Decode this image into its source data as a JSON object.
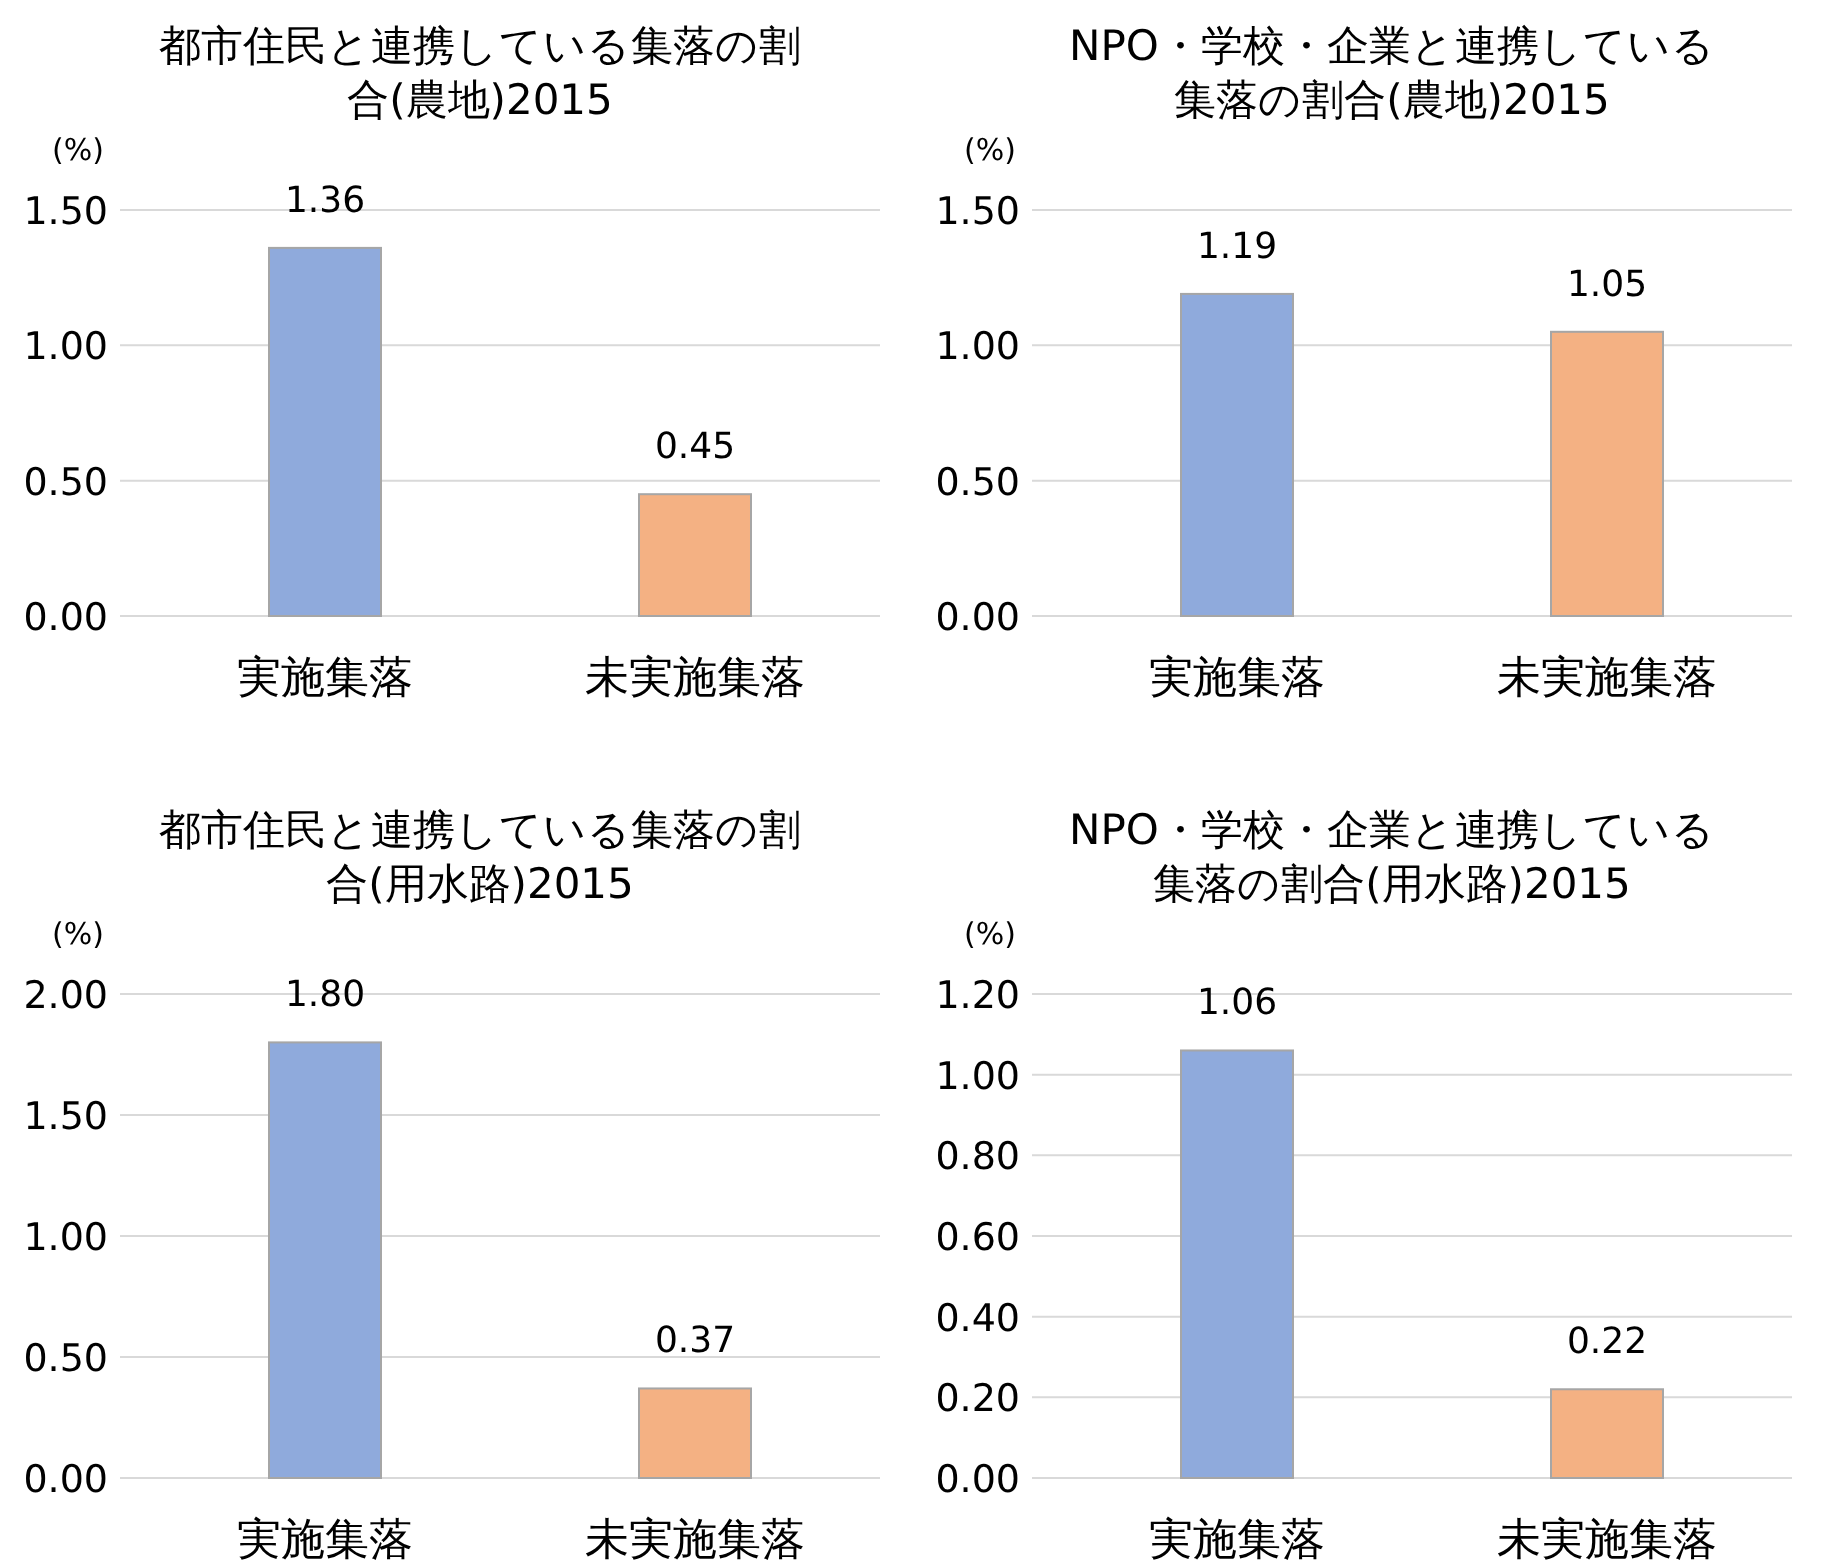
{
  "chart_data": [
    {
      "type": "bar",
      "title": "都市住民と連携している集落の割合(農地)2015",
      "ylabel": "(%)",
      "categories": [
        "実施集落",
        "未実施集落"
      ],
      "values": [
        1.36,
        0.45
      ],
      "value_labels": [
        "1.36",
        "0.45"
      ],
      "colors": [
        "#8faadc",
        "#f4b183"
      ],
      "ylim": [
        0,
        1.5
      ],
      "yticks": [
        {
          "value": 0,
          "label": "0.00"
        },
        {
          "value": 0.5,
          "label": "0.50"
        },
        {
          "value": 1,
          "label": "1.00"
        },
        {
          "value": 1.5,
          "label": "1.50"
        }
      ],
      "grid": "y"
    },
    {
      "type": "bar",
      "title": "NPO・学校・企業と連携している集落の割合(農地)2015",
      "ylabel": "(%)",
      "categories": [
        "実施集落",
        "未実施集落"
      ],
      "values": [
        1.19,
        1.05
      ],
      "value_labels": [
        "1.19",
        "1.05"
      ],
      "colors": [
        "#8faadc",
        "#f4b183"
      ],
      "ylim": [
        0,
        1.5
      ],
      "yticks": [
        {
          "value": 0,
          "label": "0.00"
        },
        {
          "value": 0.5,
          "label": "0.50"
        },
        {
          "value": 1,
          "label": "1.00"
        },
        {
          "value": 1.5,
          "label": "1.50"
        }
      ],
      "grid": "y"
    },
    {
      "type": "bar",
      "title": "都市住民と連携している集落の割合(用水路)2015",
      "ylabel": "(%)",
      "categories": [
        "実施集落",
        "未実施集落"
      ],
      "values": [
        1.8,
        0.37
      ],
      "value_labels": [
        "1.80",
        "0.37"
      ],
      "colors": [
        "#8faadc",
        "#f4b183"
      ],
      "ylim": [
        0,
        2
      ],
      "yticks": [
        {
          "value": 0,
          "label": "0.00"
        },
        {
          "value": 0.5,
          "label": "0.50"
        },
        {
          "value": 1,
          "label": "1.00"
        },
        {
          "value": 1.5,
          "label": "1.50"
        },
        {
          "value": 2,
          "label": "2.00"
        }
      ],
      "grid": "y"
    },
    {
      "type": "bar",
      "title": "NPO・学校・企業と連携している集落の割合(用水路)2015",
      "ylabel": "(%)",
      "categories": [
        "実施集落",
        "未実施集落"
      ],
      "values": [
        1.06,
        0.22
      ],
      "value_labels": [
        "1.06",
        "0.22"
      ],
      "colors": [
        "#8faadc",
        "#f4b183"
      ],
      "ylim": [
        0,
        1.2
      ],
      "yticks": [
        {
          "value": 0,
          "label": "0.00"
        },
        {
          "value": 0.2,
          "label": "0.20"
        },
        {
          "value": 0.4,
          "label": "0.40"
        },
        {
          "value": 0.6,
          "label": "0.60"
        },
        {
          "value": 0.8,
          "label": "0.80"
        },
        {
          "value": 1,
          "label": "1.00"
        },
        {
          "value": 1.2,
          "label": "1.20"
        }
      ],
      "grid": "y"
    }
  ]
}
